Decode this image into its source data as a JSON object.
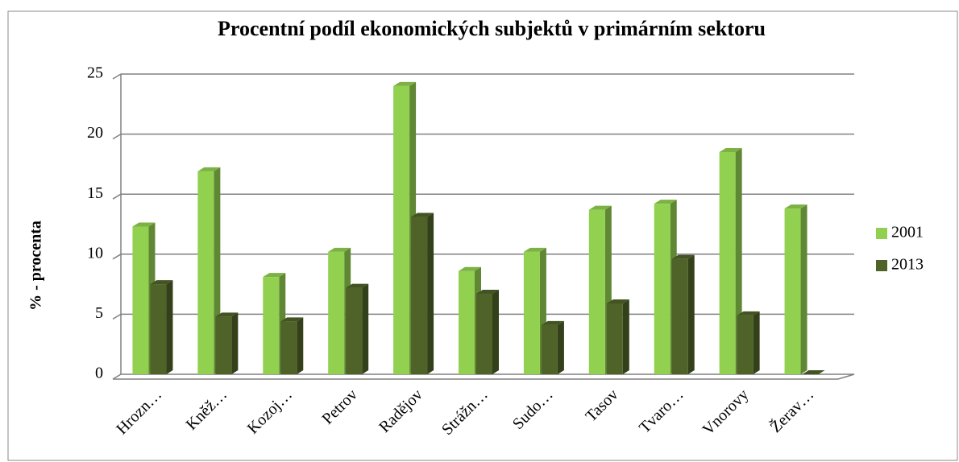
{
  "chart_data": {
    "type": "bar3d",
    "title": "Procentní podíl ekonomických subjektů v primárním sektoru",
    "y_label": "% - procenta",
    "categories": [
      "Hrozn…",
      "Kněž…",
      "Kozoj…",
      "Petrov",
      "Radějov",
      "Strážn…",
      "Sudo…",
      "Tasov",
      "Tvaro…",
      "Vnorovy",
      "Žerav…"
    ],
    "series": [
      {
        "name": "2001",
        "color": "#92d050",
        "values": [
          12.3,
          16.9,
          8.1,
          10.2,
          24.0,
          8.6,
          10.2,
          13.7,
          14.2,
          18.5,
          13.8
        ]
      },
      {
        "name": "2013",
        "color": "#4f6228",
        "values": [
          7.5,
          4.8,
          4.4,
          7.2,
          13.1,
          6.7,
          4.1,
          5.9,
          9.6,
          4.9,
          0.0
        ]
      }
    ],
    "ylim": [
      0,
      25
    ],
    "yticks": [
      0,
      5,
      10,
      15,
      20,
      25
    ],
    "grid": true,
    "legend": "right"
  }
}
